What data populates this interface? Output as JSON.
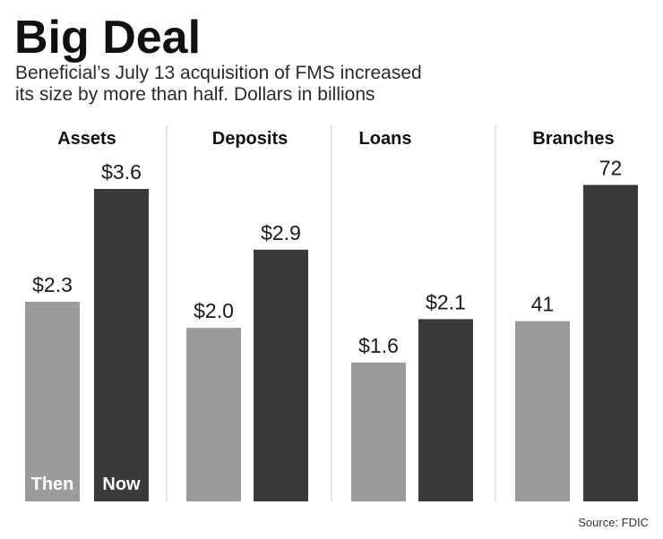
{
  "chart_data": {
    "type": "bar",
    "title": "Big Deal",
    "subtitle_lines": [
      "Beneficial’s July 13 acquisition of FMS increased",
      "its size by more than half. Dollars in billions"
    ],
    "series": [
      {
        "name": "Then",
        "color": "#9b9b9d"
      },
      {
        "name": "Now",
        "color": "#3a3a3c"
      }
    ],
    "panels": [
      {
        "title": "Assets",
        "values": [
          2.3,
          3.6
        ],
        "labels": [
          "$2.3",
          "$3.6"
        ],
        "ylim": [
          0,
          3.92
        ]
      },
      {
        "title": "Deposits",
        "values": [
          2.0,
          2.9
        ],
        "labels": [
          "$2.0",
          "$2.9"
        ],
        "ylim": [
          0,
          3.92
        ]
      },
      {
        "title": "Loans",
        "values": [
          1.6,
          2.1
        ],
        "labels": [
          "$1.6",
          "$2.1"
        ],
        "ylim": [
          0,
          3.92
        ]
      },
      {
        "title": "Branches",
        "values": [
          41,
          72
        ],
        "labels": [
          "41",
          "72"
        ],
        "ylim": [
          0,
          77.4
        ]
      }
    ],
    "source": "Source: FDIC"
  }
}
